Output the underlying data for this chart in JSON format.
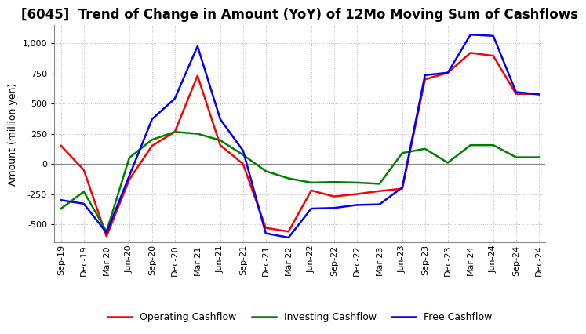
{
  "title": "[6045]  Trend of Change in Amount (YoY) of 12Mo Moving Sum of Cashflows",
  "ylabel": "Amount (million yen)",
  "background_color": "#ffffff",
  "plot_bg_color": "#ffffff",
  "grid_color": "#bbbbbb",
  "x_labels": [
    "Sep-19",
    "Dec-19",
    "Mar-20",
    "Jun-20",
    "Sep-20",
    "Dec-20",
    "Mar-21",
    "Jun-21",
    "Sep-21",
    "Dec-21",
    "Mar-22",
    "Jun-22",
    "Sep-22",
    "Dec-22",
    "Mar-23",
    "Jun-23",
    "Sep-23",
    "Dec-23",
    "Mar-24",
    "Jun-24",
    "Sep-24",
    "Dec-24"
  ],
  "operating": [
    150,
    -50,
    -600,
    -130,
    150,
    265,
    730,
    155,
    0,
    -530,
    -560,
    -220,
    -270,
    -250,
    -225,
    -205,
    700,
    755,
    920,
    895,
    580,
    580
  ],
  "investing": [
    -370,
    -230,
    -560,
    50,
    200,
    265,
    250,
    195,
    75,
    -60,
    -120,
    -155,
    -150,
    -155,
    -165,
    90,
    125,
    10,
    155,
    155,
    55,
    55
  ],
  "free": [
    -300,
    -330,
    -570,
    -100,
    370,
    540,
    975,
    370,
    110,
    -575,
    -610,
    -370,
    -365,
    -340,
    -335,
    -195,
    735,
    755,
    1070,
    1060,
    595,
    575
  ],
  "operating_color": "#ff0000",
  "investing_color": "#008000",
  "free_color": "#0000ff",
  "ylim": [
    -650,
    1150
  ],
  "yticks": [
    -500,
    -250,
    0,
    250,
    500,
    750,
    1000
  ],
  "line_width": 1.8,
  "title_fontsize": 12,
  "ylabel_fontsize": 9,
  "tick_fontsize": 8,
  "legend_fontsize": 9
}
